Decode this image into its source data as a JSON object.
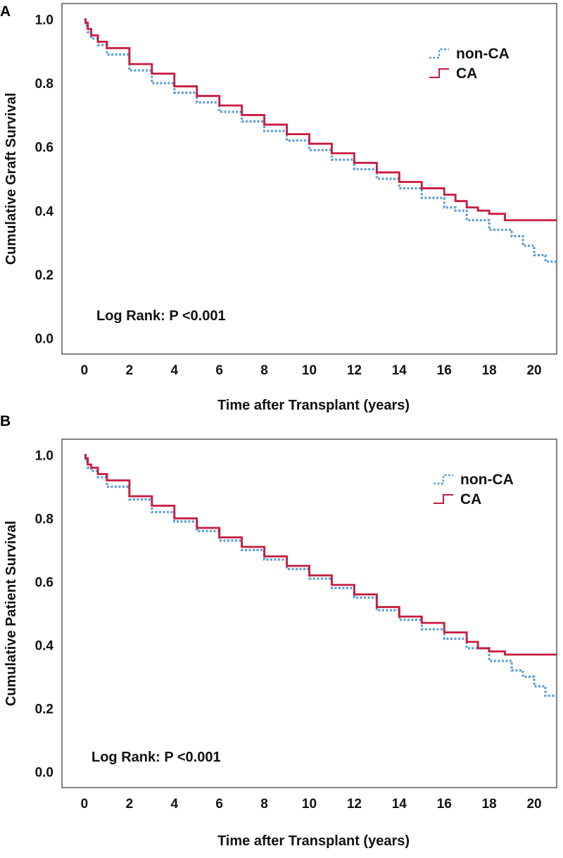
{
  "chart_data": [
    {
      "panel_label": "A",
      "type": "line",
      "title": "",
      "xlabel": "Time after Transplant (years)",
      "ylabel": "Cumulative Graft Survival",
      "xlim": [
        -1,
        21
      ],
      "ylim": [
        -0.05,
        1.05
      ],
      "xticks": [
        0,
        2,
        4,
        6,
        8,
        10,
        12,
        14,
        16,
        18,
        20
      ],
      "xtick_labels": [
        "0",
        "2",
        "4",
        "6",
        "8",
        "10",
        "12",
        "14",
        "16",
        "18",
        "20"
      ],
      "yticks": [
        0.0,
        0.2,
        0.4,
        0.6,
        0.8,
        1.0
      ],
      "ytick_labels": [
        "0.0",
        "0.2",
        "0.4",
        "0.6",
        "0.8",
        "1.0"
      ],
      "grid": false,
      "legend_position": "top-right",
      "annotation": "Log Rank: P <0.001",
      "series": [
        {
          "name": "non-CA",
          "color": "#5b9bd5",
          "style": "dotted",
          "x": [
            0,
            0.05,
            0.15,
            0.3,
            0.6,
            1,
            2,
            3,
            4,
            5,
            6,
            7,
            8,
            9,
            10,
            11,
            12,
            13,
            14,
            15,
            16,
            16.5,
            17,
            18,
            19,
            19.5,
            20,
            20.5,
            21
          ],
          "y": [
            1.0,
            0.98,
            0.96,
            0.94,
            0.92,
            0.89,
            0.84,
            0.8,
            0.77,
            0.74,
            0.71,
            0.68,
            0.65,
            0.62,
            0.59,
            0.56,
            0.53,
            0.5,
            0.47,
            0.44,
            0.41,
            0.4,
            0.37,
            0.34,
            0.32,
            0.29,
            0.26,
            0.24,
            0.23
          ]
        },
        {
          "name": "CA",
          "color": "#c8193c",
          "style": "solid",
          "x": [
            0,
            0.05,
            0.15,
            0.3,
            0.6,
            1,
            2,
            3,
            4,
            5,
            6,
            7,
            8,
            9,
            10,
            11,
            12,
            13,
            14,
            15,
            16,
            16.5,
            17,
            17.5,
            18,
            18.7,
            19,
            20,
            21
          ],
          "y": [
            1.0,
            0.99,
            0.97,
            0.95,
            0.93,
            0.91,
            0.86,
            0.83,
            0.79,
            0.76,
            0.73,
            0.7,
            0.67,
            0.64,
            0.61,
            0.58,
            0.55,
            0.52,
            0.49,
            0.47,
            0.45,
            0.43,
            0.41,
            0.4,
            0.39,
            0.37,
            0.37,
            0.37,
            0.37
          ]
        }
      ]
    },
    {
      "panel_label": "B",
      "type": "line",
      "title": "",
      "xlabel": "Time after Transplant (years)",
      "ylabel": "Cumulative Patient Survival",
      "xlim": [
        -1,
        21
      ],
      "ylim": [
        -0.05,
        1.05
      ],
      "xticks": [
        0,
        2,
        4,
        6,
        8,
        10,
        12,
        14,
        16,
        18,
        20
      ],
      "xtick_labels": [
        "0",
        "2",
        "4",
        "6",
        "8",
        "10",
        "12",
        "14",
        "16",
        "18",
        "20"
      ],
      "yticks": [
        0.0,
        0.2,
        0.4,
        0.6,
        0.8,
        1.0
      ],
      "ytick_labels": [
        "0.0",
        "0.2",
        "0.4",
        "0.6",
        "0.8",
        "1.0"
      ],
      "grid": false,
      "legend_position": "top-right",
      "annotation": "Log Rank: P <0.001",
      "series": [
        {
          "name": "non-CA",
          "color": "#5b9bd5",
          "style": "dotted",
          "x": [
            0,
            0.05,
            0.15,
            0.3,
            0.6,
            1,
            2,
            3,
            4,
            5,
            6,
            7,
            8,
            9,
            10,
            11,
            12,
            13,
            14,
            15,
            16,
            17,
            18,
            19,
            19.5,
            20,
            20.5,
            21
          ],
          "y": [
            1.0,
            0.98,
            0.96,
            0.95,
            0.93,
            0.9,
            0.86,
            0.82,
            0.79,
            0.76,
            0.73,
            0.7,
            0.67,
            0.64,
            0.61,
            0.58,
            0.55,
            0.51,
            0.48,
            0.45,
            0.42,
            0.39,
            0.35,
            0.32,
            0.3,
            0.27,
            0.24,
            0.23
          ]
        },
        {
          "name": "CA",
          "color": "#c8193c",
          "style": "solid",
          "x": [
            0,
            0.05,
            0.15,
            0.3,
            0.6,
            1,
            2,
            3,
            4,
            5,
            6,
            7,
            8,
            9,
            10,
            11,
            12,
            13,
            14,
            15,
            16,
            17,
            17.5,
            18,
            18.7,
            19,
            20,
            21
          ],
          "y": [
            1.0,
            0.99,
            0.97,
            0.96,
            0.94,
            0.92,
            0.87,
            0.84,
            0.8,
            0.77,
            0.74,
            0.71,
            0.68,
            0.65,
            0.62,
            0.59,
            0.56,
            0.52,
            0.49,
            0.47,
            0.44,
            0.41,
            0.39,
            0.38,
            0.37,
            0.37,
            0.37,
            0.37
          ]
        }
      ]
    }
  ]
}
